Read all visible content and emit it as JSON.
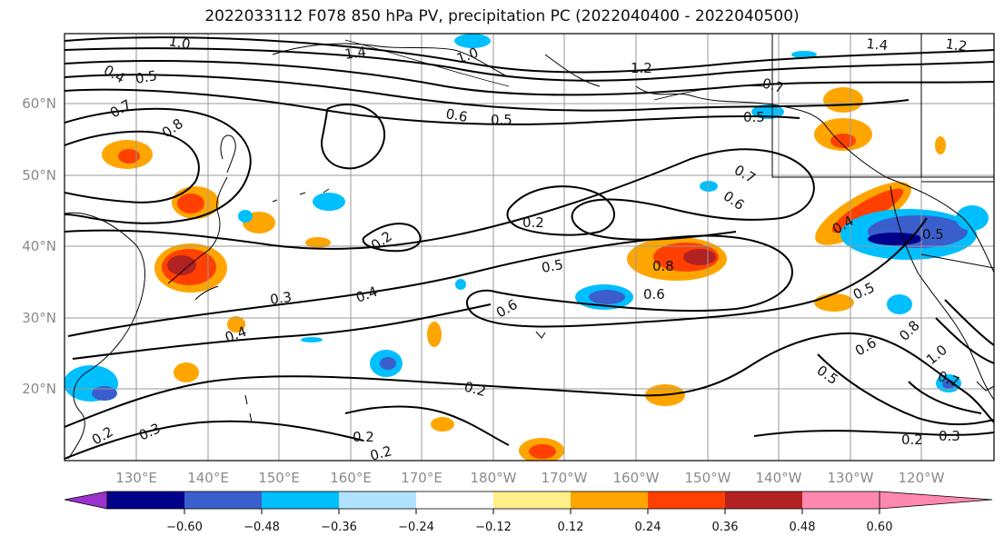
{
  "title": "2022033112 F078 850 hPa PV, precipitation PC (2022040400 - 2022040500)",
  "lat_labels": [
    "60°N",
    "50°N",
    "40°N",
    "30°N",
    "20°N"
  ],
  "lon_labels": [
    "130°E",
    "140°E",
    "150°E",
    "160°E",
    "170°E",
    "180°W",
    "170°W",
    "160°W",
    "150°W",
    "140°W",
    "130°W",
    "120°W"
  ],
  "colorbar": {
    "colors": [
      "#9a32cd",
      "#00008b",
      "#3a5fcd",
      "#00bfff",
      "#b0e2ff",
      "#ffffff",
      "#fff08a",
      "#ffa500",
      "#ff4000",
      "#b22222",
      "#ff88b0"
    ],
    "tick_labels": [
      "−0.60",
      "−0.48",
      "−0.36",
      "−0.24",
      "−0.12",
      "0.12",
      "0.24",
      "0.36",
      "0.48",
      "0.60"
    ]
  },
  "contour_labels": [
    {
      "text": "1.0"
    },
    {
      "text": "1.4"
    },
    {
      "text": "1.0"
    },
    {
      "text": "1.2"
    },
    {
      "text": "1.4"
    },
    {
      "text": "1.2"
    },
    {
      "text": "0.4"
    },
    {
      "text": "0.5"
    },
    {
      "text": "0.7"
    },
    {
      "text": "0.8"
    },
    {
      "text": "0.6"
    },
    {
      "text": "0.5"
    },
    {
      "text": "0.7"
    },
    {
      "text": "0.5"
    },
    {
      "text": "0.7"
    },
    {
      "text": "0.6"
    },
    {
      "text": "0.2"
    },
    {
      "text": "0.2"
    },
    {
      "text": "0.4"
    },
    {
      "text": "0.5"
    },
    {
      "text": "0.3"
    },
    {
      "text": "0.4"
    },
    {
      "text": "0.6"
    },
    {
      "text": "0.8"
    },
    {
      "text": "0.6"
    },
    {
      "text": "0.5"
    },
    {
      "text": "0.5"
    },
    {
      "text": "0.4"
    },
    {
      "text": "0.6"
    },
    {
      "text": "0.8"
    },
    {
      "text": "1.0"
    },
    {
      "text": "0.5"
    },
    {
      "text": "0.7"
    },
    {
      "text": "0.2"
    },
    {
      "text": "0.3"
    },
    {
      "text": "0.3"
    },
    {
      "text": "0.2"
    },
    {
      "text": "0.2"
    },
    {
      "text": "0.2"
    },
    {
      "text": "0.2"
    }
  ]
}
